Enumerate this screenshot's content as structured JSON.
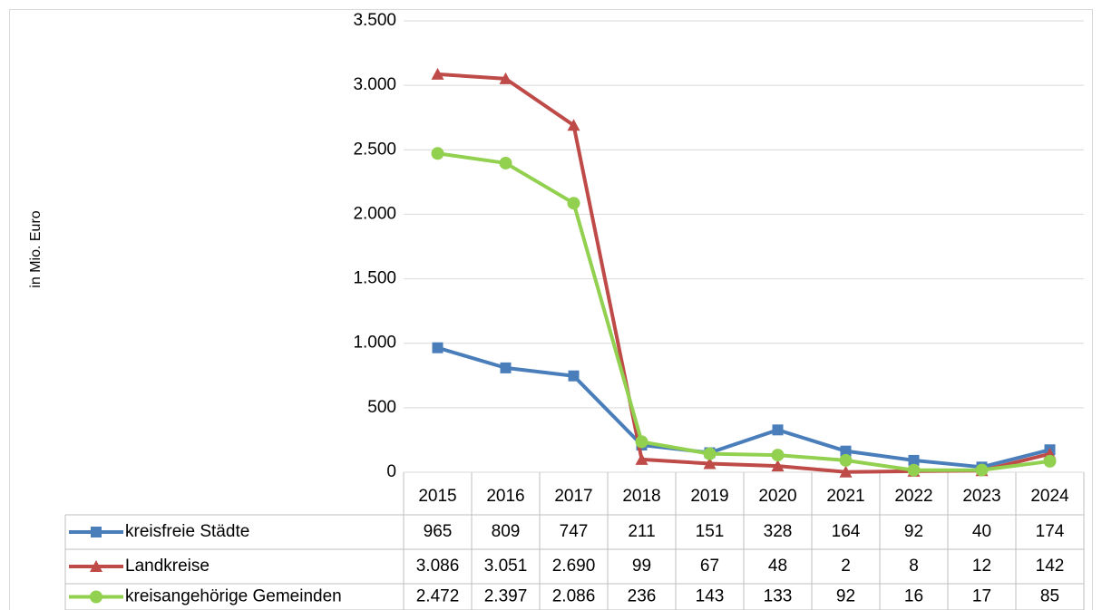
{
  "chart_data": {
    "type": "line",
    "y_label": "in Mio. Euro",
    "categories": [
      "2015",
      "2016",
      "2017",
      "2018",
      "2019",
      "2020",
      "2021",
      "2022",
      "2023",
      "2024"
    ],
    "series": [
      {
        "name": "kreisfreie Städte",
        "color": "#4a7ebb",
        "marker": "square",
        "values": [
          965,
          809,
          747,
          211,
          151,
          328,
          164,
          92,
          40,
          174
        ],
        "value_labels": [
          "965",
          "809",
          "747",
          "211",
          "151",
          "328",
          "164",
          "92",
          "40",
          "174"
        ]
      },
      {
        "name": "Landkreise",
        "color": "#be4b48",
        "marker": "triangle",
        "values": [
          3086,
          3051,
          2690,
          99,
          67,
          48,
          2,
          8,
          12,
          142
        ],
        "value_labels": [
          "3.086",
          "3.051",
          "2.690",
          "99",
          "67",
          "48",
          "2",
          "8",
          "12",
          "142"
        ]
      },
      {
        "name": "kreisangehörige Gemeinden",
        "color": "#92d050",
        "marker": "circle",
        "values": [
          2472,
          2397,
          2086,
          236,
          143,
          133,
          92,
          16,
          17,
          85
        ],
        "value_labels": [
          "2.472",
          "2.397",
          "2.086",
          "236",
          "143",
          "133",
          "92",
          "16",
          "17",
          "85"
        ]
      }
    ],
    "ylim": [
      0,
      3500
    ],
    "yticks": [
      0,
      500,
      {
        "value": 1000,
        "label": "1.000"
      },
      {
        "value": 1500,
        "label": "1.500"
      },
      {
        "value": 2000,
        "label": "2.000"
      },
      {
        "value": 2500,
        "label": "2.500"
      },
      {
        "value": 3000,
        "label": "3.000"
      },
      {
        "value": 3500,
        "label": "3.500"
      }
    ],
    "grid": true,
    "legend": "table"
  }
}
